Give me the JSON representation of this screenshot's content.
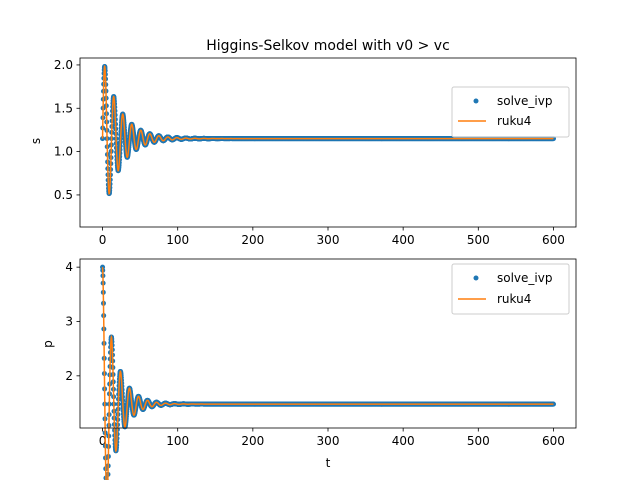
{
  "chart_data": [
    {
      "type": "line",
      "title": "Higgins-Selkov model with v0 > vc",
      "xlabel": "",
      "ylabel": "s",
      "xlim": [
        -30,
        630
      ],
      "ylim": [
        0.13,
        2.08
      ],
      "xticks": [
        0,
        100,
        200,
        300,
        400,
        500,
        600
      ],
      "yticks": [
        0.5,
        1.0,
        1.5,
        2.0
      ],
      "ytick_labels": [
        "0.5",
        "1.0",
        "1.5",
        "2.0"
      ],
      "legend_position": "upper-right",
      "grid": false,
      "model": {
        "initial": 2.0,
        "steady": 1.15,
        "amplitude": 0.95,
        "decay": 0.045,
        "period": 12.0,
        "phase": 1.5708
      },
      "series": [
        {
          "name": "solve_ivp",
          "style": "markers",
          "color": "#1f77b4"
        },
        {
          "name": "ruku4",
          "style": "line",
          "color": "#ff7f0e"
        }
      ]
    },
    {
      "type": "line",
      "title": "",
      "xlabel": "t",
      "ylabel": "p",
      "xlim": [
        -30,
        630
      ],
      "ylim": [
        1.04,
        4.15
      ],
      "xticks": [
        0,
        100,
        200,
        300,
        400,
        500,
        600
      ],
      "yticks": [
        2,
        3,
        4
      ],
      "ytick_labels": [
        "2",
        "3",
        "4"
      ],
      "legend_position": "upper-right",
      "grid": false,
      "model": {
        "initial": 4.0,
        "steady": 1.48,
        "amplitude": 2.52,
        "decay": 0.06,
        "period": 12.0,
        "phase": 0.0
      },
      "series": [
        {
          "name": "solve_ivp",
          "style": "markers",
          "color": "#1f77b4"
        },
        {
          "name": "ruku4",
          "style": "line",
          "color": "#ff7f0e"
        }
      ]
    }
  ]
}
